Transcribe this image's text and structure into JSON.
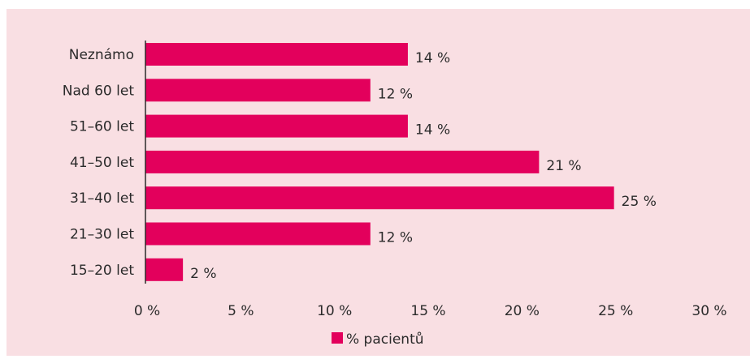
{
  "colors": {
    "background": "#f9dfe3",
    "bar": "#e3005c",
    "axis": "#2b2b2b",
    "text": "#2b2b2b"
  },
  "chart_data": {
    "type": "bar",
    "orientation": "horizontal",
    "categories": [
      "Neznámo",
      "Nad 60 let",
      "51–60 let",
      "41–50 let",
      "31–40 let",
      "21–30 let",
      "15–20 let"
    ],
    "series": [
      {
        "name": "% pacientů",
        "values": [
          14,
          12,
          14,
          21,
          25,
          12,
          2
        ],
        "data_labels": [
          "14 %",
          "12 %",
          "14 %",
          "21 %",
          "25 %",
          "12 %",
          "2 %"
        ]
      }
    ],
    "x_ticks": [
      0,
      5,
      10,
      15,
      20,
      25,
      30
    ],
    "x_tick_labels": [
      "0 %",
      "5 %",
      "10 %",
      "15 %",
      "20 %",
      "25 %",
      "30 %"
    ],
    "xlim": [
      0,
      30
    ],
    "grid": false,
    "legend": {
      "position": "bottom-center",
      "entries": [
        "% pacientů"
      ]
    }
  }
}
